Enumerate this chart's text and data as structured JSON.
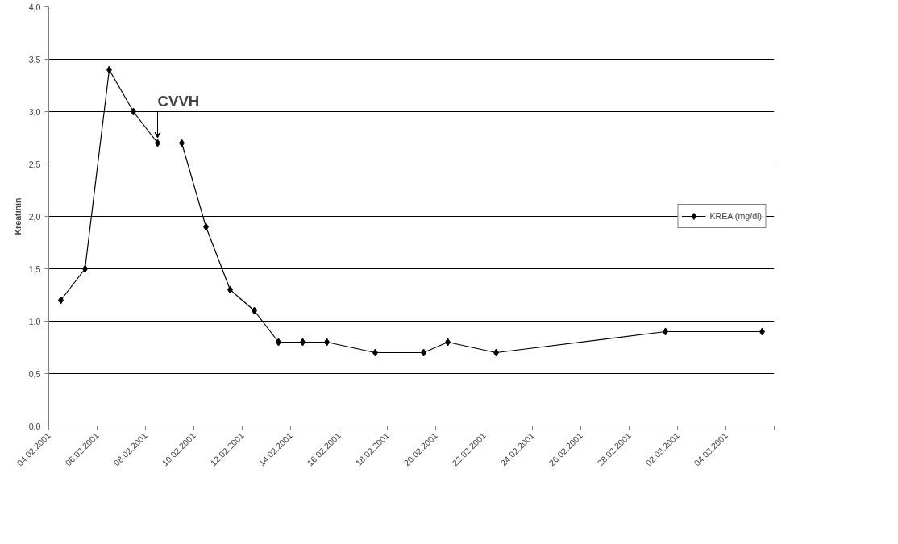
{
  "chart_data": {
    "type": "line",
    "ylabel": "Kreatinin",
    "x": [
      "2001-02-04T12:00",
      "2001-02-05T12:00",
      "2001-02-06T12:00",
      "2001-02-07T12:00",
      "2001-02-08T12:00",
      "2001-02-09T12:00",
      "2001-02-10T12:00",
      "2001-02-11T12:00",
      "2001-02-12T12:00",
      "2001-02-13T12:00",
      "2001-02-14T12:00",
      "2001-02-15T12:00",
      "2001-02-17T12:00",
      "2001-02-19T12:00",
      "2001-02-20T12:00",
      "2001-02-22T12:00",
      "2001-03-01T12:00",
      "2001-03-05T12:00"
    ],
    "series": [
      {
        "name": "KREA (mg/dl)",
        "color": "#000000",
        "values": [
          1.2,
          1.5,
          3.4,
          3.0,
          2.7,
          2.7,
          1.9,
          1.3,
          1.1,
          0.8,
          0.8,
          0.8,
          0.7,
          0.7,
          0.8,
          0.7,
          0.9,
          0.9
        ]
      }
    ],
    "xlim": [
      "2001-02-04",
      "2001-03-06"
    ],
    "xticks": [
      {
        "value": "2001-02-04",
        "label": "04.02.2001"
      },
      {
        "value": "2001-02-06",
        "label": "06.02.2001"
      },
      {
        "value": "2001-02-08",
        "label": "08.02.2001"
      },
      {
        "value": "2001-02-10",
        "label": "10.02.2001"
      },
      {
        "value": "2001-02-12",
        "label": "12.02.2001"
      },
      {
        "value": "2001-02-14",
        "label": "14.02.2001"
      },
      {
        "value": "2001-02-16",
        "label": "16.02.2001"
      },
      {
        "value": "2001-02-18",
        "label": "18.02.2001"
      },
      {
        "value": "2001-02-20",
        "label": "20.02.2001"
      },
      {
        "value": "2001-02-22",
        "label": "22.02.2001"
      },
      {
        "value": "2001-02-24",
        "label": "24.02.2001"
      },
      {
        "value": "2001-02-26",
        "label": "26.02.2001"
      },
      {
        "value": "2001-02-28",
        "label": "28.02.2001"
      },
      {
        "value": "2001-03-02",
        "label": "02.03.2001"
      },
      {
        "value": "2001-03-04",
        "label": "04.03.2001"
      },
      {
        "value": "2001-03-06",
        "label": null
      }
    ],
    "ylim": [
      0,
      4
    ],
    "yticks": [
      {
        "value": 0,
        "label": "0,0"
      },
      {
        "value": 0.5,
        "label": "0,5"
      },
      {
        "value": 1,
        "label": "1,0"
      },
      {
        "value": 1.5,
        "label": "1,5"
      },
      {
        "value": 2,
        "label": "2,0"
      },
      {
        "value": 2.5,
        "label": "2,5"
      },
      {
        "value": 3,
        "label": "3,0"
      },
      {
        "value": 3.5,
        "label": "3,5"
      },
      {
        "value": 4,
        "label": "4,0"
      }
    ],
    "annotations": [
      {
        "text": "CVVH",
        "x": "2001-02-08T12:00",
        "y": 2.7
      }
    ],
    "grid": "y",
    "legend": "right",
    "marker": "diamond",
    "line_style": "solid"
  }
}
